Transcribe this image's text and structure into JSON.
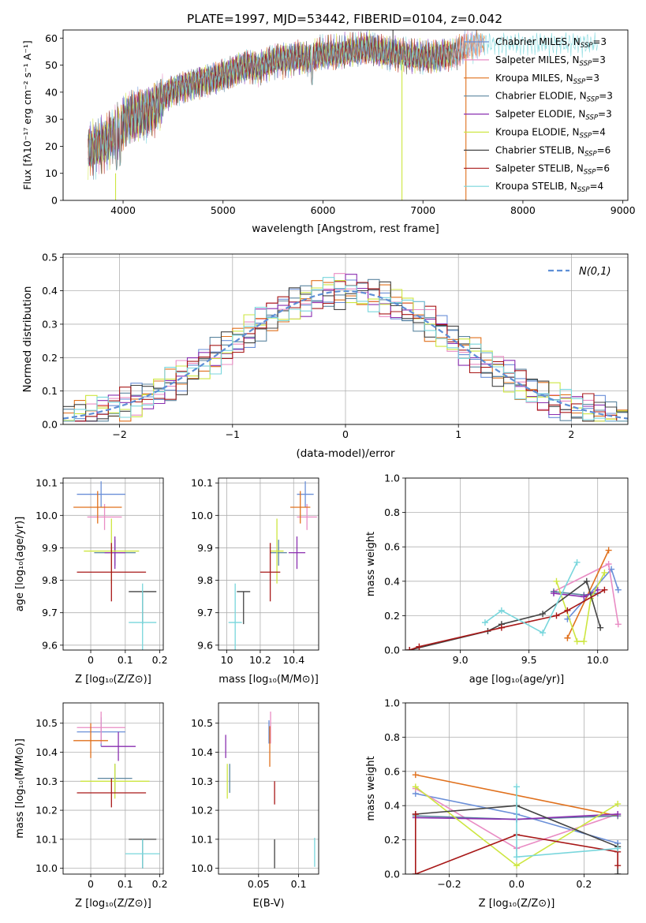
{
  "figure_title": "PLATE=1997, MJD=53442, FIBERID=0104, z=0.042",
  "colors": {
    "Chabrier MILES": "#6a8fd8",
    "Salpeter MILES": "#e98cc4",
    "Kroupa MILES": "#e0701c",
    "Chabrier ELODIE": "#5c86a0",
    "Salpeter ELODIE": "#8a2fb0",
    "Kroupa ELODIE": "#cde640",
    "Chabrier STELIB": "#444444",
    "Salpeter STELIB": "#a81818",
    "Kroupa STELIB": "#78d6dc",
    "normal": "#5e8fd6"
  },
  "chart_data": [
    {
      "type": "line",
      "title": "PLATE=1997, MJD=53442, FIBERID=0104, z=0.042",
      "xlabel": "wavelength [Angstrom, rest frame]",
      "ylabel": "Flux [f_λ 10^-17 erg cm^-2 s^-1 A^-1]",
      "xlim": [
        3400,
        9050
      ],
      "ylim": [
        0,
        63
      ],
      "xticks": [
        4000,
        5000,
        6000,
        7000,
        8000,
        9000
      ],
      "yticks": [
        0,
        10,
        20,
        30,
        40,
        50,
        60
      ],
      "legend_position": "right",
      "legend": [
        "Chabrier MILES, N_SSP=3",
        "Salpeter MILES, N_SSP=3",
        "Kroupa MILES, N_SSP=3",
        "Chabrier ELODIE, N_SSP=3",
        "Salpeter ELODIE, N_SSP=3",
        "Kroupa ELODIE, N_SSP=4",
        "Chabrier STELIB, N_SSP=6",
        "Salpeter STELIB, N_SSP=6",
        "Kroupa STELIB, N_SSP=4"
      ],
      "series_continuum": {
        "x": [
          3650,
          3750,
          3850,
          3950,
          4050,
          4150,
          4250,
          4350,
          4450,
          4550,
          4650,
          4750,
          4850,
          4950,
          5050,
          5150,
          5250,
          5350,
          5450,
          5550,
          5650,
          5750,
          5850,
          5950,
          6050,
          6150,
          6250,
          6350,
          6450,
          6550,
          6650,
          6750,
          6850,
          6950,
          7050,
          7150,
          7250,
          7350,
          7450,
          7550
        ],
        "y": [
          18,
          20,
          22,
          26,
          31,
          32,
          33,
          36,
          40,
          42,
          43,
          44,
          45,
          46,
          47,
          49,
          50,
          49,
          51,
          52,
          52,
          53,
          52,
          54,
          54,
          54,
          55,
          55,
          56,
          55,
          54,
          54,
          53,
          53,
          53,
          53,
          54,
          55,
          57,
          58
        ]
      }
    },
    {
      "type": "line",
      "xlabel": "(data-model)/error",
      "ylabel": "Normed distribution",
      "xlim": [
        -2.5,
        2.5
      ],
      "ylim": [
        0,
        0.51
      ],
      "xticks": [
        -2,
        -1,
        0,
        1,
        2
      ],
      "yticks": [
        0.0,
        0.1,
        0.2,
        0.3,
        0.4,
        0.5
      ],
      "legend_position": "top-right",
      "normal_label": "N(0,1)",
      "histogram_bins": [
        -2.5,
        -2.4,
        -2.3,
        -2.2,
        -2.1,
        -2.0,
        -1.9,
        -1.8,
        -1.7,
        -1.6,
        -1.5,
        -1.4,
        -1.3,
        -1.2,
        -1.1,
        -1.0,
        -0.9,
        -0.8,
        -0.7,
        -0.6,
        -0.5,
        -0.4,
        -0.3,
        -0.2,
        -0.1,
        0.0,
        0.1,
        0.2,
        0.3,
        0.4,
        0.5,
        0.6,
        0.7,
        0.8,
        0.9,
        1.0,
        1.1,
        1.2,
        1.3,
        1.4,
        1.5,
        1.6,
        1.7,
        1.8,
        1.9,
        2.0,
        2.1,
        2.2,
        2.3,
        2.4,
        2.5
      ]
    },
    {
      "type": "scatter",
      "xlabel": "Z [log10(Z/Z_sun)]",
      "ylabel": "age [log10(age/yr)]",
      "xlim": [
        -0.08,
        0.21
      ],
      "ylim": [
        9.585,
        10.115
      ],
      "xticks": [
        0.0,
        0.1,
        0.2
      ],
      "yticks": [
        9.6,
        9.7,
        9.8,
        9.9,
        10.0,
        10.1
      ],
      "points": [
        {
          "series": "Chabrier MILES",
          "x": 0.03,
          "xerr": 0.07,
          "y": 10.065,
          "yerr": 0.04
        },
        {
          "series": "Salpeter MILES",
          "x": 0.04,
          "xerr": 0.05,
          "y": 9.995,
          "yerr": 0.04
        },
        {
          "series": "Kroupa MILES",
          "x": 0.02,
          "xerr": 0.07,
          "y": 10.025,
          "yerr": 0.05
        },
        {
          "series": "Chabrier ELODIE",
          "x": 0.07,
          "xerr": 0.06,
          "y": 9.885,
          "yerr": 0.04
        },
        {
          "series": "Salpeter ELODIE",
          "x": 0.07,
          "xerr": 0.03,
          "y": 9.885,
          "yerr": 0.05
        },
        {
          "series": "Kroupa ELODIE",
          "x": 0.06,
          "xerr": 0.08,
          "y": 9.89,
          "yerr": 0.1
        },
        {
          "series": "Chabrier STELIB",
          "x": 0.15,
          "xerr": 0.04,
          "y": 9.765,
          "yerr": 0.0
        },
        {
          "series": "Salpeter STELIB",
          "x": 0.06,
          "xerr": 0.1,
          "y": 9.825,
          "yerr": 0.09
        },
        {
          "series": "Kroupa STELIB",
          "x": 0.15,
          "xerr": 0.04,
          "y": 9.67,
          "yerr": 0.12
        }
      ]
    },
    {
      "type": "scatter",
      "xlabel": "mass [log10(M/M_sun)]",
      "xlim": [
        9.95,
        10.55
      ],
      "ylim": [
        9.585,
        10.115
      ],
      "xticks": [
        10.0,
        10.2,
        10.4
      ],
      "yticks": [
        9.6,
        9.7,
        9.8,
        9.9,
        10.0,
        10.1
      ],
      "points": [
        {
          "series": "Chabrier MILES",
          "x": 10.47,
          "xerr": 0.05,
          "y": 10.065,
          "yerr": 0.04
        },
        {
          "series": "Salpeter MILES",
          "x": 10.48,
          "xerr": 0.06,
          "y": 9.995,
          "yerr": 0.04
        },
        {
          "series": "Kroupa MILES",
          "x": 10.44,
          "xerr": 0.06,
          "y": 10.025,
          "yerr": 0.05
        },
        {
          "series": "Chabrier ELODIE",
          "x": 10.31,
          "xerr": 0.05,
          "y": 9.885,
          "yerr": 0.04
        },
        {
          "series": "Salpeter ELODIE",
          "x": 10.42,
          "xerr": 0.05,
          "y": 9.885,
          "yerr": 0.05
        },
        {
          "series": "Kroupa ELODIE",
          "x": 10.3,
          "xerr": 0.04,
          "y": 9.89,
          "yerr": 0.1
        },
        {
          "series": "Chabrier STELIB",
          "x": 10.1,
          "xerr": 0.04,
          "y": 9.765,
          "yerr": 0.0
        },
        {
          "series": "Salpeter STELIB",
          "x": 10.26,
          "xerr": 0.06,
          "y": 9.825,
          "yerr": 0.09
        },
        {
          "series": "Kroupa STELIB",
          "x": 10.05,
          "xerr": 0.04,
          "y": 9.67,
          "yerr": 0.12
        }
      ]
    },
    {
      "type": "line",
      "xlabel": "age [log10(age/yr)]",
      "ylabel": "mass weight",
      "xlim": [
        8.6,
        10.22
      ],
      "ylim": [
        0,
        1.0
      ],
      "xticks": [
        9.0,
        9.5,
        10.0
      ],
      "yticks": [
        0.0,
        0.2,
        0.4,
        0.6,
        0.8,
        1.0
      ],
      "series": [
        {
          "series": "Chabrier MILES",
          "x": [
            10.15,
            10.1,
            9.78
          ],
          "y": [
            0.35,
            0.47,
            0.18
          ]
        },
        {
          "series": "Salpeter MILES",
          "x": [
            10.15,
            10.08,
            9.68
          ],
          "y": [
            0.15,
            0.5,
            0.34
          ]
        },
        {
          "series": "Kroupa MILES",
          "x": [
            10.08,
            9.78
          ],
          "y": [
            0.58,
            0.07
          ]
        },
        {
          "series": "Chabrier ELODIE",
          "x": [
            9.68,
            9.9,
            10.0
          ],
          "y": [
            0.34,
            0.32,
            0.33
          ]
        },
        {
          "series": "Salpeter ELODIE",
          "x": [
            9.68,
            9.9,
            10.0
          ],
          "y": [
            0.33,
            0.31,
            0.35
          ]
        },
        {
          "series": "Kroupa ELODIE",
          "x": [
            9.7,
            9.85,
            9.9,
            9.95,
            10.05
          ],
          "y": [
            0.4,
            0.05,
            0.05,
            0.3,
            0.45
          ]
        },
        {
          "series": "Chabrier STELIB",
          "x": [
            8.63,
            9.2,
            9.3,
            9.6,
            9.92,
            10.02
          ],
          "y": [
            0.0,
            0.11,
            0.15,
            0.21,
            0.4,
            0.13
          ]
        },
        {
          "series": "Salpeter STELIB",
          "x": [
            8.63,
            8.7,
            9.3,
            9.7,
            9.78,
            10.05
          ],
          "y": [
            0.0,
            0.02,
            0.13,
            0.2,
            0.23,
            0.35
          ]
        },
        {
          "series": "Kroupa STELIB",
          "x": [
            9.18,
            9.3,
            9.6,
            9.85
          ],
          "y": [
            0.16,
            0.23,
            0.1,
            0.51
          ]
        }
      ]
    },
    {
      "type": "scatter",
      "xlabel": "Z [log10(Z/Z_sun)]",
      "ylabel": "mass [log10(M/M_sun)]",
      "xlim": [
        -0.08,
        0.21
      ],
      "ylim": [
        9.98,
        10.57
      ],
      "xticks": [
        0.0,
        0.1,
        0.2
      ],
      "yticks": [
        10.0,
        10.1,
        10.2,
        10.3,
        10.4,
        10.5
      ],
      "points": [
        {
          "series": "Chabrier MILES",
          "x": 0.03,
          "xerr": 0.07,
          "y": 10.47,
          "yerr": 0.05
        },
        {
          "series": "Salpeter MILES",
          "x": 0.03,
          "xerr": 0.07,
          "y": 10.485,
          "yerr": 0.055
        },
        {
          "series": "Kroupa MILES",
          "x": 0.0,
          "xerr": 0.05,
          "y": 10.44,
          "yerr": 0.06
        },
        {
          "series": "Chabrier ELODIE",
          "x": 0.07,
          "xerr": 0.05,
          "y": 10.31,
          "yerr": 0.05
        },
        {
          "series": "Salpeter ELODIE",
          "x": 0.08,
          "xerr": 0.05,
          "y": 10.42,
          "yerr": 0.05
        },
        {
          "series": "Kroupa ELODIE",
          "x": 0.07,
          "xerr": 0.1,
          "y": 10.3,
          "yerr": 0.06
        },
        {
          "series": "Chabrier STELIB",
          "x": 0.15,
          "xerr": 0.04,
          "y": 10.1,
          "yerr": 0.0
        },
        {
          "series": "Salpeter STELIB",
          "x": 0.06,
          "xerr": 0.1,
          "y": 10.26,
          "yerr": 0.05
        },
        {
          "series": "Kroupa STELIB",
          "x": 0.15,
          "xerr": 0.05,
          "y": 10.05,
          "yerr": 0.05
        }
      ]
    },
    {
      "type": "scatter",
      "xlabel": "E(B-V)",
      "xlim": [
        0.0,
        0.125
      ],
      "ylim": [
        9.98,
        10.57
      ],
      "xticks": [
        0.05,
        0.1
      ],
      "yticks": [
        10.0,
        10.1,
        10.2,
        10.3,
        10.4,
        10.5
      ],
      "points": [
        {
          "series": "Chabrier MILES",
          "x": 0.063,
          "y": 10.47,
          "yerr": 0.04
        },
        {
          "series": "Salpeter MILES",
          "x": 0.065,
          "y": 10.485,
          "yerr": 0.055
        },
        {
          "series": "Kroupa MILES",
          "x": 0.064,
          "y": 10.42,
          "yerr": 0.07
        },
        {
          "series": "Chabrier ELODIE",
          "x": 0.014,
          "y": 10.31,
          "yerr": 0.05
        },
        {
          "series": "Salpeter ELODIE",
          "x": 0.009,
          "y": 10.42,
          "yerr": 0.04
        },
        {
          "series": "Kroupa ELODIE",
          "x": 0.011,
          "y": 10.3,
          "yerr": 0.06
        },
        {
          "series": "Chabrier STELIB",
          "x": 0.07,
          "y": 10.05,
          "yerr": 0.05
        },
        {
          "series": "Salpeter STELIB",
          "x": 0.07,
          "y": 10.26,
          "yerr": 0.04
        },
        {
          "series": "Kroupa STELIB",
          "x": 0.12,
          "y": 10.055,
          "yerr": 0.05
        }
      ]
    },
    {
      "type": "line",
      "xlabel": "Z [log10(Z/Z_sun)]",
      "ylabel": "mass weight",
      "xlim": [
        -0.33,
        0.33
      ],
      "ylim": [
        0,
        1.0
      ],
      "xticks": [
        -0.2,
        0.0,
        0.2
      ],
      "yticks": [
        0.0,
        0.2,
        0.4,
        0.6,
        0.8,
        1.0
      ],
      "series": [
        {
          "series": "Chabrier MILES",
          "x": [
            -0.3,
            0.0,
            0.3
          ],
          "y": [
            0.47,
            0.35,
            0.18
          ]
        },
        {
          "series": "Salpeter MILES",
          "x": [
            -0.3,
            0.0,
            0.3
          ],
          "y": [
            0.5,
            0.15,
            0.35
          ]
        },
        {
          "series": "Kroupa MILES",
          "x": [
            -0.3,
            0.3
          ],
          "y": [
            0.58,
            0.34
          ]
        },
        {
          "series": "Chabrier ELODIE",
          "x": [
            -0.3,
            0.0,
            0.3
          ],
          "y": [
            0.34,
            0.32,
            0.34
          ]
        },
        {
          "series": "Salpeter ELODIE",
          "x": [
            -0.3,
            0.0,
            0.3
          ],
          "y": [
            0.33,
            0.32,
            0.35
          ]
        },
        {
          "series": "Kroupa ELODIE",
          "x": [
            -0.3,
            0.0,
            0.3
          ],
          "y": [
            0.51,
            0.05,
            0.41
          ]
        },
        {
          "series": "Chabrier STELIB",
          "x": [
            -0.3,
            0.0,
            0.3,
            0.3
          ],
          "y": [
            0.35,
            0.4,
            0.16,
            0.0
          ]
        },
        {
          "series": "Salpeter STELIB",
          "x": [
            -0.3,
            -0.3,
            0.0,
            0.3,
            0.3
          ],
          "y": [
            0.35,
            0.0,
            0.23,
            0.13,
            0.05
          ]
        },
        {
          "series": "Kroupa STELIB",
          "x": [
            0.0,
            0.0,
            0.3
          ],
          "y": [
            0.51,
            0.1,
            0.15
          ]
        }
      ]
    }
  ]
}
